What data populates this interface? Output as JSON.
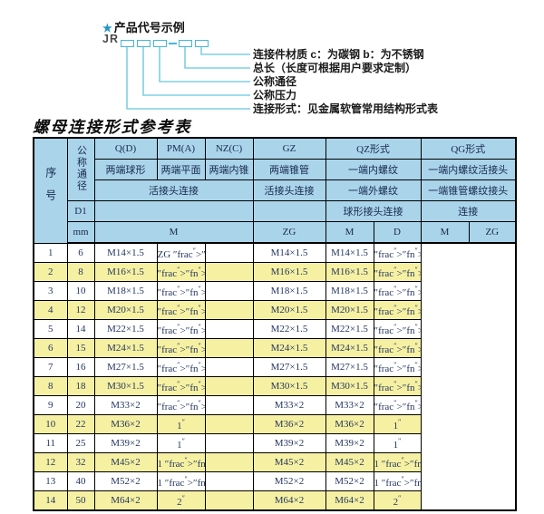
{
  "diagram": {
    "star": "★",
    "heading": "产品代号示例",
    "prefix": "JR",
    "labels": [
      "连接件材质  c：为碳钢  b：为不锈钢",
      "总长（长度可根据用户要求定制）",
      "公称通径",
      "公称压力",
      "连接形式：见金属软管常用结构形式表"
    ]
  },
  "table": {
    "title": "螺母连接形式参考表",
    "header": {
      "seq": "序号",
      "nominal_diameter": "公称通径",
      "d1": "D1",
      "mm": "mm",
      "forms": [
        "Q(D)",
        "PM(A)",
        "NZ(C)",
        "GZ",
        "QZ形式",
        "QG形式"
      ],
      "end_types": [
        "两端球形",
        "两端平面",
        "两端内锥",
        "两端锥管",
        "一端内螺纹",
        "一端内螺纹活接头"
      ],
      "conn_types": [
        "活接头连接",
        "活接头连接",
        "一端外螺纹",
        "一端锥管螺纹接头"
      ],
      "conn_types2": [
        "球形接头连接",
        "连接"
      ],
      "units": [
        "M",
        "ZG",
        "M",
        "D",
        "M",
        "ZG"
      ]
    },
    "rows": [
      [
        "1",
        "6",
        "M14×1.5",
        "ZG 1/4\"",
        "",
        "M14×1.5",
        "M14×1.5",
        "1/4\""
      ],
      [
        "2",
        "8",
        "M16×1.5",
        "3/8\"",
        "",
        "M16×1.5",
        "M16×1.5",
        "3/8\""
      ],
      [
        "3",
        "10",
        "M18×1.5",
        "3/8\"",
        "",
        "M18×1.5",
        "M18×1.5",
        "3/8\""
      ],
      [
        "4",
        "12",
        "M20×1.5",
        "1/2\"",
        "",
        "M20×1.5",
        "M20×1.5",
        "1/2\""
      ],
      [
        "5",
        "14",
        "M22×1.5",
        "1/2\"",
        "",
        "M22×1.5",
        "M22×1.5",
        "1/2\""
      ],
      [
        "6",
        "15",
        "M24×1.5",
        "1/2\"",
        "",
        "M24×1.5",
        "M24×1.5",
        "1/2\""
      ],
      [
        "7",
        "16",
        "M27×1.5",
        "1/2\"",
        "",
        "M27×1.5",
        "M27×1.5",
        "1/2\""
      ],
      [
        "8",
        "18",
        "M30×1.5",
        "3/4\"",
        "",
        "M30×1.5",
        "M30×1.5",
        "3/4\""
      ],
      [
        "9",
        "20",
        "M33×2",
        "3/4\"",
        "",
        "M33×2",
        "M33×2",
        "3/4\""
      ],
      [
        "10",
        "22",
        "M36×2",
        "1\"",
        "",
        "M36×2",
        "M36×2",
        "1\""
      ],
      [
        "11",
        "25",
        "M39×2",
        "1\"",
        "",
        "M39×2",
        "M39×2",
        "1\""
      ],
      [
        "12",
        "32",
        "M45×2",
        "1 1/4\"",
        "",
        "M45×2",
        "M45×2",
        "1 1/4\""
      ],
      [
        "13",
        "40",
        "M52×2",
        "1 1/2\"",
        "",
        "M52×2",
        "M52×2",
        "1 1/2\""
      ],
      [
        "14",
        "50",
        "M64×2",
        "2\"",
        "",
        "M64×2",
        "M64×2",
        "2\""
      ]
    ]
  },
  "colors": {
    "header_blue": "#aad4ea",
    "row_yellow": "#f6f1a2",
    "cyan_line": "#7ecfe6",
    "box_border": "#45b7dc",
    "star_blue": "#2095c8",
    "text_navy": "#243560"
  }
}
